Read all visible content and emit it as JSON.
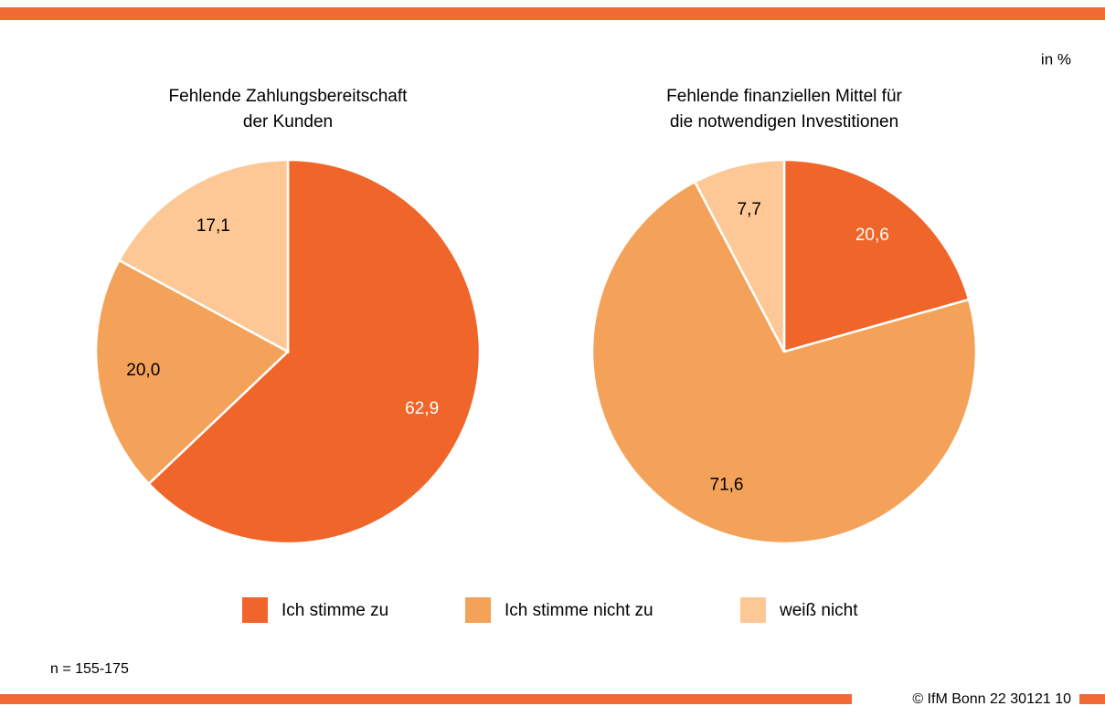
{
  "unit": "in %",
  "note": "n = 155-175",
  "source": "© IfM Bonn 22 30121 10",
  "chart_data": [
    {
      "type": "pie",
      "title": [
        "Fehlende Zahlungsbereitschaft",
        "der Kunden"
      ],
      "categories": [
        "Ich stimme zu",
        "Ich stimme nicht zu",
        "weiß nicht"
      ],
      "values": [
        62.9,
        20.0,
        17.1
      ],
      "value_labels": [
        "62,9",
        "20,0",
        "17,1"
      ],
      "colors": [
        "#f06529",
        "#f4a259",
        "#fdc896"
      ],
      "label_colors": [
        "#ffffff",
        "#000000",
        "#000000"
      ]
    },
    {
      "type": "pie",
      "title": [
        "Fehlende finanziellen Mittel für",
        "die notwendigen Investitionen"
      ],
      "categories": [
        "Ich stimme zu",
        "Ich stimme nicht zu",
        "weiß nicht"
      ],
      "values": [
        20.6,
        71.6,
        7.7
      ],
      "value_labels": [
        "20,6",
        "71,6",
        "7,7"
      ],
      "colors": [
        "#f06529",
        "#f4a259",
        "#fdc896"
      ],
      "label_colors": [
        "#ffffff",
        "#000000",
        "#000000"
      ]
    }
  ]
}
